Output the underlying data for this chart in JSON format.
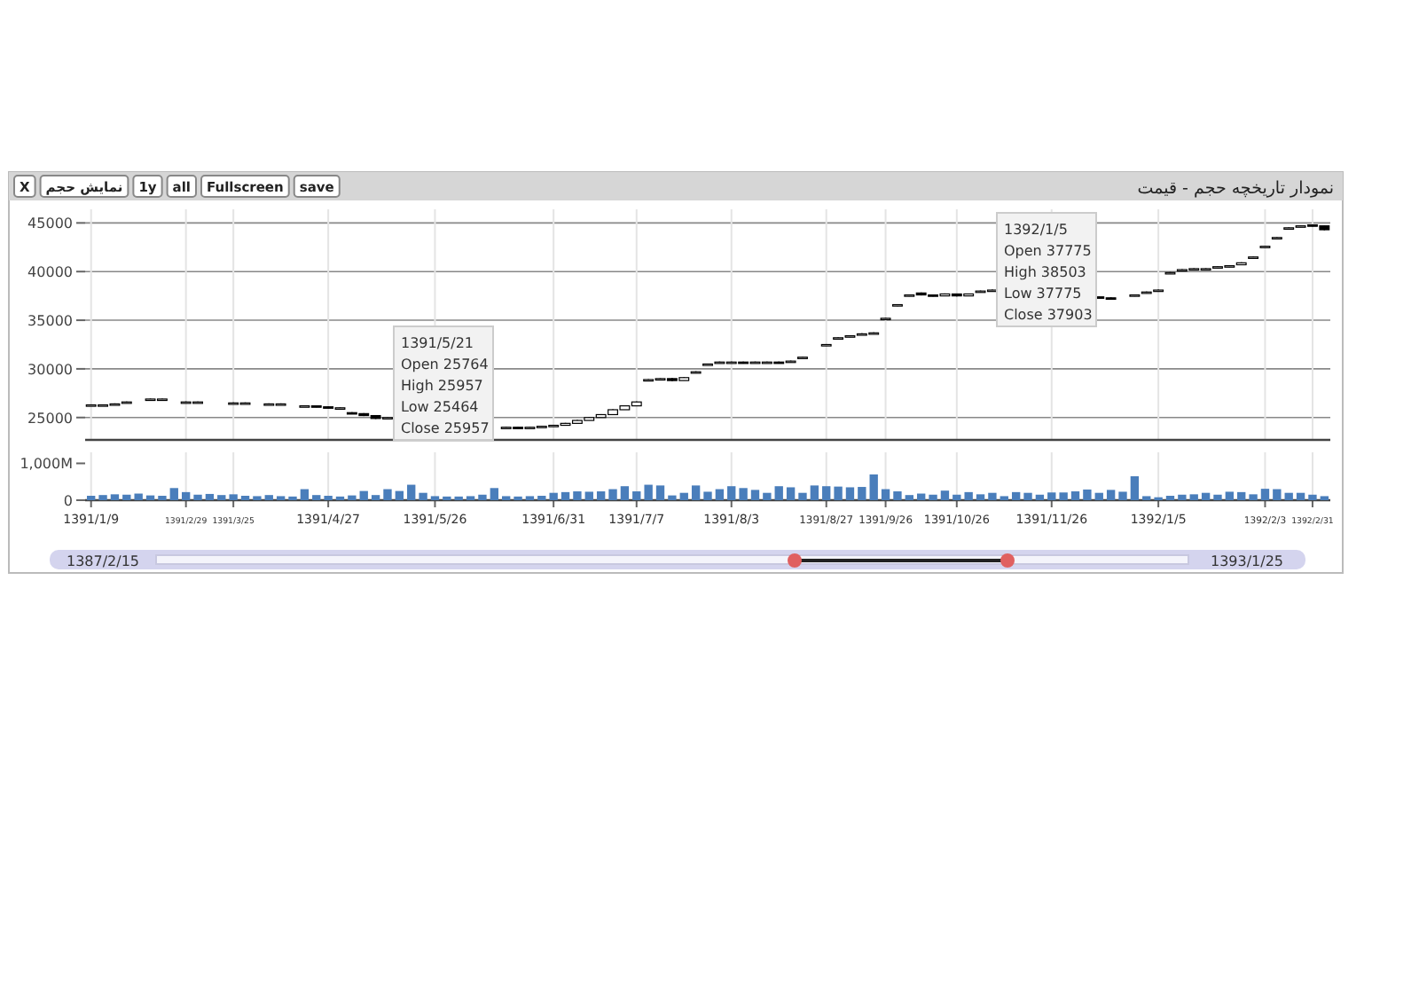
{
  "chart_data": [
    {
      "type": "candlestick",
      "title": "نمودار تاریخچه حجم - قیمت",
      "tick_labels": "y",
      "grid": true,
      "categories": [
        "1391/1/9",
        null,
        null,
        null,
        null,
        null,
        null,
        null,
        "1391/2/29",
        null,
        null,
        null,
        "1391/3/25",
        null,
        null,
        null,
        null,
        null,
        null,
        null,
        "1391/4/27",
        null,
        null,
        null,
        null,
        null,
        null,
        null,
        null,
        "1391/5/26",
        null,
        null,
        null,
        null,
        null,
        null,
        null,
        null,
        null,
        "1391/6/31",
        null,
        null,
        null,
        null,
        null,
        null,
        "1391/7/7",
        null,
        null,
        null,
        null,
        null,
        null,
        null,
        "1391/8/3",
        null,
        null,
        null,
        null,
        null,
        null,
        null,
        "1391/8/27",
        null,
        null,
        null,
        null,
        "1391/9/26",
        null,
        null,
        null,
        null,
        null,
        "1391/10/26",
        null,
        null,
        null,
        null,
        null,
        null,
        null,
        "1391/11/26",
        null,
        null,
        null,
        null,
        null,
        null,
        null,
        null,
        "1392/1/5",
        null,
        null,
        null,
        null,
        null,
        null,
        null,
        null,
        "1392/2/3",
        null,
        null,
        null,
        "1392/2/31",
        null
      ],
      "ohlc": [
        [
          26250,
          26350,
          26200,
          26300
        ],
        [
          26300,
          26350,
          26250,
          26300
        ],
        [
          26300,
          26450,
          26300,
          26400
        ],
        [
          26500,
          26650,
          26500,
          26600
        ],
        null,
        [
          26850,
          26950,
          26800,
          26900
        ],
        [
          26900,
          26950,
          26850,
          26900
        ],
        null,
        [
          26600,
          26650,
          26550,
          26600
        ],
        [
          26600,
          26650,
          26550,
          26600
        ],
        null,
        null,
        [
          26500,
          26550,
          26450,
          26500
        ],
        [
          26500,
          26550,
          26450,
          26500
        ],
        null,
        [
          26400,
          26450,
          26350,
          26400
        ],
        [
          26400,
          26450,
          26350,
          26400
        ],
        null,
        [
          26200,
          26250,
          26150,
          26200
        ],
        [
          26200,
          26250,
          26050,
          26100
        ],
        [
          26100,
          26150,
          25950,
          26000
        ],
        [
          26000,
          26050,
          25950,
          26000
        ],
        [
          25500,
          25550,
          25350,
          25400
        ],
        [
          25400,
          25450,
          25150,
          25200
        ],
        [
          25200,
          25250,
          24850,
          24900
        ],
        [
          24900,
          25050,
          24900,
          25000
        ],
        null,
        null,
        null,
        null,
        null,
        null,
        null,
        null,
        null,
        [
          24000,
          24050,
          23950,
          24000
        ],
        [
          24000,
          24050,
          23850,
          23900
        ],
        [
          23900,
          24050,
          23900,
          24000
        ],
        [
          24000,
          24150,
          24000,
          24100
        ],
        [
          24100,
          24250,
          24100,
          24200
        ],
        [
          24200,
          24450,
          24200,
          24400
        ],
        [
          24400,
          24750,
          24400,
          24700
        ],
        [
          24700,
          25050,
          24700,
          25000
        ],
        [
          25000,
          25350,
          25000,
          25300
        ],
        [
          25300,
          25850,
          25300,
          25800
        ],
        [
          25800,
          26250,
          25800,
          26200
        ],
        [
          26200,
          26650,
          26200,
          26600
        ],
        [
          28800,
          28950,
          28750,
          28900
        ],
        [
          28900,
          29050,
          28850,
          29000
        ],
        [
          29000,
          29050,
          28750,
          28800
        ],
        [
          28800,
          29150,
          28800,
          29100
        ],
        [
          29600,
          29750,
          29550,
          29700
        ],
        [
          30400,
          30550,
          30350,
          30500
        ],
        [
          30600,
          30750,
          30550,
          30700
        ],
        [
          30700,
          30750,
          30650,
          30700
        ],
        [
          30700,
          30750,
          30550,
          30600
        ],
        [
          30600,
          30750,
          30600,
          30700
        ],
        [
          30700,
          30750,
          30650,
          30700
        ],
        [
          30700,
          30750,
          30550,
          30600
        ],
        [
          30700,
          30850,
          30650,
          30800
        ],
        [
          31100,
          31250,
          31050,
          31200
        ],
        null,
        [
          32400,
          32550,
          32350,
          32500
        ],
        [
          33100,
          33250,
          33050,
          33200
        ],
        [
          33300,
          33450,
          33250,
          33400
        ],
        [
          33500,
          33650,
          33450,
          33600
        ],
        [
          33600,
          33750,
          33550,
          33700
        ],
        [
          35100,
          35250,
          35050,
          35200
        ],
        [
          36500,
          36650,
          36450,
          36600
        ],
        [
          37500,
          37650,
          37450,
          37600
        ],
        [
          37800,
          37850,
          37550,
          37600
        ],
        [
          37600,
          37650,
          37450,
          37500
        ],
        [
          37500,
          37750,
          37500,
          37700
        ],
        [
          37700,
          37750,
          37450,
          37500
        ],
        [
          37500,
          37750,
          37500,
          37700
        ],
        [
          37900,
          38050,
          37850,
          38000
        ],
        [
          38000,
          38150,
          37950,
          38100
        ],
        null,
        null,
        null,
        null,
        null,
        null,
        null,
        null,
        [
          37400,
          37450,
          37250,
          37300
        ],
        [
          37300,
          37350,
          37150,
          37200
        ],
        null,
        [
          37500,
          37650,
          37450,
          37600
        ],
        [
          37800,
          37950,
          37750,
          37900
        ],
        [
          38000,
          38150,
          37950,
          38100
        ],
        [
          39800,
          39950,
          39750,
          39900
        ],
        [
          40100,
          40250,
          40050,
          40200
        ],
        [
          40200,
          40350,
          40150,
          40300
        ],
        [
          40300,
          40350,
          40250,
          40300
        ],
        [
          40400,
          40550,
          40350,
          40500
        ],
        [
          40500,
          40650,
          40450,
          40600
        ],
        [
          40700,
          40950,
          40700,
          40900
        ],
        [
          41400,
          41550,
          41350,
          41500
        ],
        [
          42500,
          42650,
          42450,
          42600
        ],
        [
          43400,
          43550,
          43350,
          43500
        ],
        [
          44400,
          44550,
          44350,
          44500
        ],
        [
          44600,
          44750,
          44550,
          44700
        ],
        [
          44800,
          44850,
          44650,
          44700
        ],
        [
          44700,
          44750,
          44250,
          44300
        ]
      ],
      "ylim": [
        22700,
        46400
      ],
      "yticks": [
        25000,
        30000,
        35000,
        40000,
        45000
      ],
      "annotations": [
        "1391/5/21\nOpen 25764\nHigh 25957\nLow 25464\nClose 25957",
        "1392/1/5\nOpen 37775\nHigh 38503\nLow 37775\nClose 37903"
      ]
    },
    {
      "type": "bar",
      "color": "#4a7ebb",
      "grid": "x",
      "categories": [
        "1391/1/9",
        null,
        null,
        null,
        null,
        null,
        null,
        null,
        "1391/2/29",
        null,
        null,
        null,
        "1391/3/25",
        null,
        null,
        null,
        null,
        null,
        null,
        null,
        "1391/4/27",
        null,
        null,
        null,
        null,
        null,
        null,
        null,
        null,
        "1391/5/26",
        null,
        null,
        null,
        null,
        null,
        null,
        null,
        null,
        null,
        "1391/6/31",
        null,
        null,
        null,
        null,
        null,
        null,
        "1391/7/7",
        null,
        null,
        null,
        null,
        null,
        null,
        null,
        "1391/8/3",
        null,
        null,
        null,
        null,
        null,
        null,
        null,
        "1391/8/27",
        null,
        null,
        null,
        null,
        "1391/9/26",
        null,
        null,
        null,
        null,
        null,
        "1391/10/26",
        null,
        null,
        null,
        null,
        null,
        null,
        null,
        "1391/11/26",
        null,
        null,
        null,
        null,
        null,
        null,
        null,
        null,
        "1392/1/5",
        null,
        null,
        null,
        null,
        null,
        null,
        null,
        null,
        "1392/2/3",
        null,
        null,
        null,
        "1392/2/31",
        null
      ],
      "values": [
        120,
        140,
        160,
        150,
        180,
        130,
        120,
        330,
        220,
        150,
        170,
        140,
        160,
        120,
        110,
        140,
        110,
        100,
        300,
        140,
        120,
        100,
        130,
        250,
        140,
        300,
        250,
        420,
        200,
        110,
        100,
        100,
        110,
        150,
        330,
        110,
        100,
        110,
        120,
        200,
        220,
        240,
        230,
        240,
        300,
        380,
        240,
        420,
        400,
        130,
        200,
        400,
        230,
        300,
        380,
        330,
        280,
        200,
        380,
        350,
        200,
        400,
        380,
        370,
        350,
        360,
        700,
        300,
        240,
        140,
        180,
        150,
        260,
        150,
        220,
        160,
        200,
        110,
        220,
        200,
        150,
        210,
        210,
        240,
        290,
        200,
        280,
        230,
        650,
        110,
        80,
        120,
        150,
        160,
        200,
        150,
        230,
        220,
        160,
        310,
        300,
        200,
        200,
        150,
        110
      ],
      "ylim": [
        0,
        1300
      ],
      "yticks": [
        0,
        {
          "value": 1000,
          "label": "1,000M"
        }
      ],
      "annotations": [
        "1387/2/15",
        "1393/1/25"
      ]
    },
    {
      "type": "other",
      "annotations": [
        "X",
        "نمایش حجم",
        "1y",
        "all",
        "Fullscreen",
        "save"
      ]
    }
  ]
}
